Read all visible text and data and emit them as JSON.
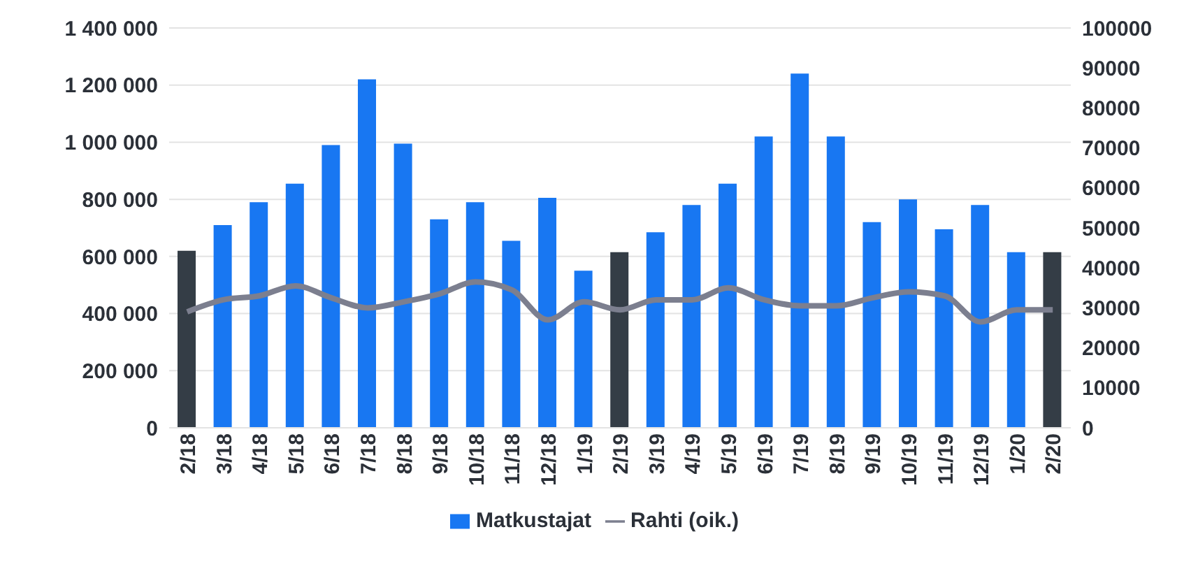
{
  "chart_data": {
    "type": "bar",
    "categories": [
      "2/18",
      "3/18",
      "4/18",
      "5/18",
      "6/18",
      "7/18",
      "8/18",
      "9/18",
      "10/18",
      "11/18",
      "12/18",
      "1/19",
      "2/19",
      "3/19",
      "4/19",
      "5/19",
      "6/19",
      "7/19",
      "8/19",
      "9/19",
      "10/19",
      "11/19",
      "12/19",
      "1/20",
      "2/20"
    ],
    "series": [
      {
        "name": "Matkustajat",
        "color": "#1877f2",
        "colors": [
          "#343d46",
          "#1877f2",
          "#1877f2",
          "#1877f2",
          "#1877f2",
          "#1877f2",
          "#1877f2",
          "#1877f2",
          "#1877f2",
          "#1877f2",
          "#1877f2",
          "#1877f2",
          "#343d46",
          "#1877f2",
          "#1877f2",
          "#1877f2",
          "#1877f2",
          "#1877f2",
          "#1877f2",
          "#1877f2",
          "#1877f2",
          "#1877f2",
          "#1877f2",
          "#1877f2",
          "#343d46"
        ],
        "values": [
          620000,
          710000,
          790000,
          855000,
          990000,
          1220000,
          995000,
          730000,
          790000,
          655000,
          805000,
          550000,
          615000,
          685000,
          780000,
          855000,
          1020000,
          1240000,
          1020000,
          720000,
          800000,
          695000,
          780000,
          615000,
          615000
        ]
      },
      {
        "name": "Rahti (oik.)",
        "type": "line",
        "axis": "y2",
        "color": "#7c7f8f",
        "values": [
          29000,
          32000,
          33000,
          35500,
          32500,
          30000,
          31500,
          33500,
          36500,
          34500,
          27000,
          31500,
          29500,
          32000,
          32000,
          35000,
          32000,
          30500,
          30500,
          32500,
          34000,
          33000,
          26500,
          29500,
          29500
        ]
      }
    ],
    "ylim": [
      0,
      1400000
    ],
    "yticks": [
      {
        "value": 0,
        "label": "0"
      },
      {
        "value": 200000,
        "label": "200 000"
      },
      {
        "value": 400000,
        "label": "400 000"
      },
      {
        "value": 600000,
        "label": "600 000"
      },
      {
        "value": 800000,
        "label": "800 000"
      },
      {
        "value": 1000000,
        "label": "1 000 000"
      },
      {
        "value": 1200000,
        "label": "1 200 000"
      },
      {
        "value": 1400000,
        "label": "1 400 000"
      }
    ],
    "y2lim": [
      0,
      100000
    ],
    "y2ticks": [
      0,
      10000,
      20000,
      30000,
      40000,
      50000,
      60000,
      70000,
      80000,
      90000,
      100000
    ],
    "grid": "y",
    "legend": "bottom",
    "marker": "none",
    "line_style": "solid"
  }
}
